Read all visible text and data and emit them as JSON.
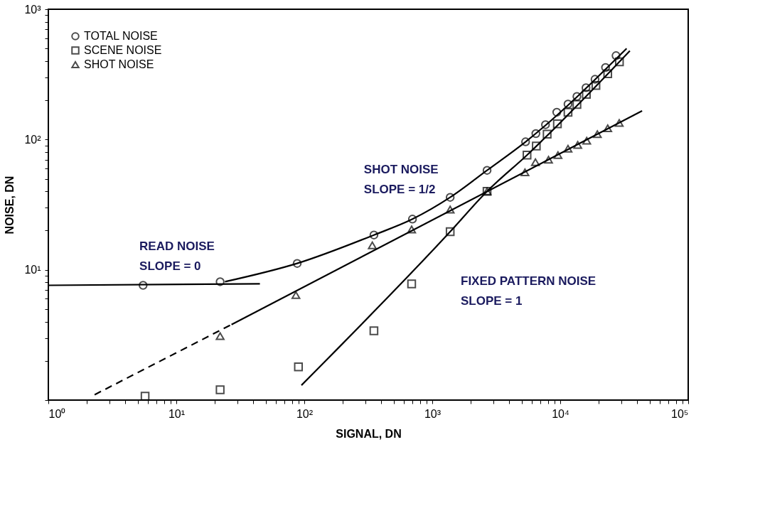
{
  "chart_data": {
    "type": "scatter",
    "xlabel": "SIGNAL, DN",
    "ylabel": "NOISE, DN",
    "log": "xy",
    "grid": false,
    "legend": "top left",
    "xlim": [
      1,
      100000
    ],
    "ylim": [
      1,
      1000
    ],
    "xticks": [
      {
        "value": 1,
        "label": "10⁰"
      },
      {
        "value": 2,
        "label": null
      },
      {
        "value": 3,
        "label": null
      },
      {
        "value": 4,
        "label": null
      },
      {
        "value": 5,
        "label": null
      },
      {
        "value": 6,
        "label": null
      },
      {
        "value": 7,
        "label": null
      },
      {
        "value": 8,
        "label": null
      },
      {
        "value": 9,
        "label": null
      },
      {
        "value": 10,
        "label": "10¹"
      },
      {
        "value": 20,
        "label": null
      },
      {
        "value": 30,
        "label": null
      },
      {
        "value": 40,
        "label": null
      },
      {
        "value": 50,
        "label": null
      },
      {
        "value": 60,
        "label": null
      },
      {
        "value": 70,
        "label": null
      },
      {
        "value": 80,
        "label": null
      },
      {
        "value": 90,
        "label": null
      },
      {
        "value": 100,
        "label": "10²"
      },
      {
        "value": 200,
        "label": null
      },
      {
        "value": 300,
        "label": null
      },
      {
        "value": 400,
        "label": null
      },
      {
        "value": 500,
        "label": null
      },
      {
        "value": 600,
        "label": null
      },
      {
        "value": 700,
        "label": null
      },
      {
        "value": 800,
        "label": null
      },
      {
        "value": 900,
        "label": null
      },
      {
        "value": 1000,
        "label": "10³"
      },
      {
        "value": 2000,
        "label": null
      },
      {
        "value": 3000,
        "label": null
      },
      {
        "value": 4000,
        "label": null
      },
      {
        "value": 5000,
        "label": null
      },
      {
        "value": 6000,
        "label": null
      },
      {
        "value": 7000,
        "label": null
      },
      {
        "value": 8000,
        "label": null
      },
      {
        "value": 9000,
        "label": null
      },
      {
        "value": 10000,
        "label": "10⁴"
      },
      {
        "value": 20000,
        "label": null
      },
      {
        "value": 30000,
        "label": null
      },
      {
        "value": 40000,
        "label": null
      },
      {
        "value": 50000,
        "label": null
      },
      {
        "value": 60000,
        "label": null
      },
      {
        "value": 70000,
        "label": null
      },
      {
        "value": 80000,
        "label": null
      },
      {
        "value": 90000,
        "label": null
      },
      {
        "value": 100000,
        "label": "10⁵"
      }
    ],
    "yticks": [
      {
        "value": 1,
        "label": null
      },
      {
        "value": 2,
        "label": null
      },
      {
        "value": 3,
        "label": null
      },
      {
        "value": 4,
        "label": null
      },
      {
        "value": 5,
        "label": null
      },
      {
        "value": 6,
        "label": null
      },
      {
        "value": 7,
        "label": null
      },
      {
        "value": 8,
        "label": null
      },
      {
        "value": 9,
        "label": null
      },
      {
        "value": 10,
        "label": "10¹"
      },
      {
        "value": 20,
        "label": null
      },
      {
        "value": 30,
        "label": null
      },
      {
        "value": 40,
        "label": null
      },
      {
        "value": 50,
        "label": null
      },
      {
        "value": 60,
        "label": null
      },
      {
        "value": 70,
        "label": null
      },
      {
        "value": 80,
        "label": null
      },
      {
        "value": 90,
        "label": null
      },
      {
        "value": 100,
        "label": "10²"
      },
      {
        "value": 200,
        "label": null
      },
      {
        "value": 300,
        "label": null
      },
      {
        "value": 400,
        "label": null
      },
      {
        "value": 500,
        "label": null
      },
      {
        "value": 600,
        "label": null
      },
      {
        "value": 700,
        "label": null
      },
      {
        "value": 800,
        "label": null
      },
      {
        "value": 900,
        "label": null
      },
      {
        "value": 1000,
        "label": "10³"
      }
    ],
    "series": [
      {
        "name": "TOTAL NOISE",
        "marker": "circle",
        "color": "#000000",
        "x": [
          5.5,
          22,
          88,
          350,
          700,
          1380,
          2680,
          5360,
          6450,
          7670,
          9400,
          11500,
          13500,
          15900,
          18700,
          22600,
          27300
        ],
        "values": [
          7.6,
          8.1,
          11.2,
          18.5,
          24.5,
          36,
          58,
          96,
          111,
          130,
          162,
          187,
          214,
          250,
          290,
          357,
          440
        ]
      },
      {
        "name": "SCENE NOISE",
        "marker": "square",
        "color": "#000000",
        "x": [
          5.7,
          22,
          90,
          350,
          690,
          1380,
          2680,
          5500,
          6500,
          7900,
          9500,
          11500,
          13500,
          16000,
          19000,
          23500,
          29000
        ],
        "values": [
          1.07,
          1.2,
          1.8,
          3.4,
          7.8,
          19.6,
          40,
          76,
          89,
          110,
          132,
          162,
          186,
          222,
          260,
          320,
          395
        ]
      },
      {
        "name": "SHOT NOISE",
        "marker": "triangle",
        "color": "#000000",
        "x": [
          22,
          86,
          340,
          690,
          1380,
          2680,
          5300,
          6400,
          8100,
          9600,
          11500,
          13700,
          16100,
          19500,
          23500,
          28900
        ],
        "values": [
          3.1,
          6.4,
          15.4,
          20.4,
          29,
          40,
          56,
          67,
          70,
          76,
          85,
          91,
          98,
          110,
          122,
          134
        ]
      },
      {
        "type": "line",
        "marker": "none",
        "line_style": "solid",
        "color": "#000000",
        "x": [
          1,
          45
        ],
        "values": [
          7.6,
          7.8
        ]
      },
      {
        "type": "line",
        "marker": "none",
        "line_style": "solid",
        "color": "#000000",
        "x": [
          24,
          88,
          350,
          700,
          1380,
          2680,
          5360,
          33000
        ],
        "values": [
          8.1,
          11.2,
          18.5,
          24.5,
          36,
          58,
          96,
          500
        ]
      },
      {
        "type": "line",
        "marker": "none",
        "line_style": "dashed",
        "color": "#000000",
        "x": [
          2.3,
          27
        ],
        "values": [
          1.1,
          3.8
        ]
      },
      {
        "type": "line",
        "marker": "none",
        "line_style": "solid",
        "color": "#000000",
        "x": [
          27,
          43600
        ],
        "values": [
          3.8,
          166
        ]
      },
      {
        "type": "line",
        "marker": "none",
        "line_style": "solid",
        "color": "#000000",
        "x": [
          95,
          1380,
          2680,
          5500,
          35000
        ],
        "values": [
          1.3,
          19.6,
          40,
          76,
          480
        ]
      }
    ],
    "annotations": [
      {
        "text": "READ NOISE\nSLOPE = 0",
        "x": 18.5,
        "y": 8
      },
      {
        "text": "SHOT NOISE\nSLOPE = 1/2",
        "x": 1050,
        "y": 26
      },
      {
        "text": "FIXED PATTERN NOISE\nSLOPE = 1",
        "x": 1000,
        "y": 13.4
      }
    ]
  }
}
